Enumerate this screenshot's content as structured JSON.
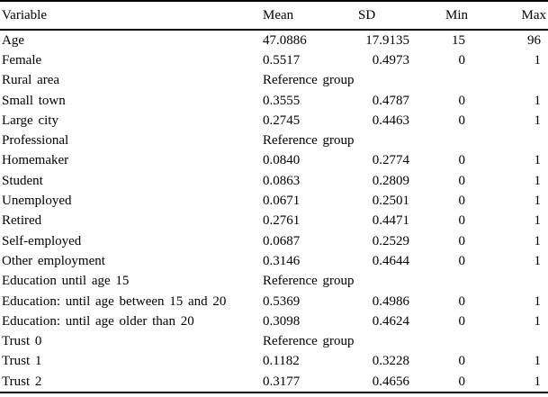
{
  "table": {
    "columns": [
      "Variable",
      "Mean",
      "SD",
      "Min",
      "Max"
    ],
    "reference_label": "Reference group",
    "rows": [
      {
        "variable": "Age",
        "mean": "47.0886",
        "sd": "17.9135",
        "min": "15",
        "max": "96"
      },
      {
        "variable": "Female",
        "mean": "0.5517",
        "sd": "0.4973",
        "min": "0",
        "max": "1"
      },
      {
        "variable": "Rural area",
        "reference": true
      },
      {
        "variable": "Small town",
        "mean": "0.3555",
        "sd": "0.4787",
        "min": "0",
        "max": "1"
      },
      {
        "variable": "Large city",
        "mean": "0.2745",
        "sd": "0.4463",
        "min": "0",
        "max": "1"
      },
      {
        "variable": "Professional",
        "reference": true
      },
      {
        "variable": "Homemaker",
        "mean": "0.0840",
        "sd": "0.2774",
        "min": "0",
        "max": "1"
      },
      {
        "variable": "Student",
        "mean": "0.0863",
        "sd": "0.2809",
        "min": "0",
        "max": "1"
      },
      {
        "variable": "Unemployed",
        "mean": "0.0671",
        "sd": "0.2501",
        "min": "0",
        "max": "1"
      },
      {
        "variable": "Retired",
        "mean": "0.2761",
        "sd": "0.4471",
        "min": "0",
        "max": "1"
      },
      {
        "variable": "Self-employed",
        "mean": "0.0687",
        "sd": "0.2529",
        "min": "0",
        "max": "1"
      },
      {
        "variable": "Other employment",
        "mean": "0.3146",
        "sd": "0.4644",
        "min": "0",
        "max": "1"
      },
      {
        "variable": "Education until age 15",
        "reference": true
      },
      {
        "variable": "Education: until age between 15 and 20",
        "mean": "0.5369",
        "sd": "0.4986",
        "min": "0",
        "max": "1"
      },
      {
        "variable": "Education: until age older than 20",
        "mean": "0.3098",
        "sd": "0.4624",
        "min": "0",
        "max": "1"
      },
      {
        "variable": "Trust 0",
        "reference": true
      },
      {
        "variable": "Trust 1",
        "mean": "0.1182",
        "sd": "0.3228",
        "min": "0",
        "max": "1"
      },
      {
        "variable": "Trust 2",
        "mean": "0.3177",
        "sd": "0.4656",
        "min": "0",
        "max": "1"
      }
    ]
  }
}
